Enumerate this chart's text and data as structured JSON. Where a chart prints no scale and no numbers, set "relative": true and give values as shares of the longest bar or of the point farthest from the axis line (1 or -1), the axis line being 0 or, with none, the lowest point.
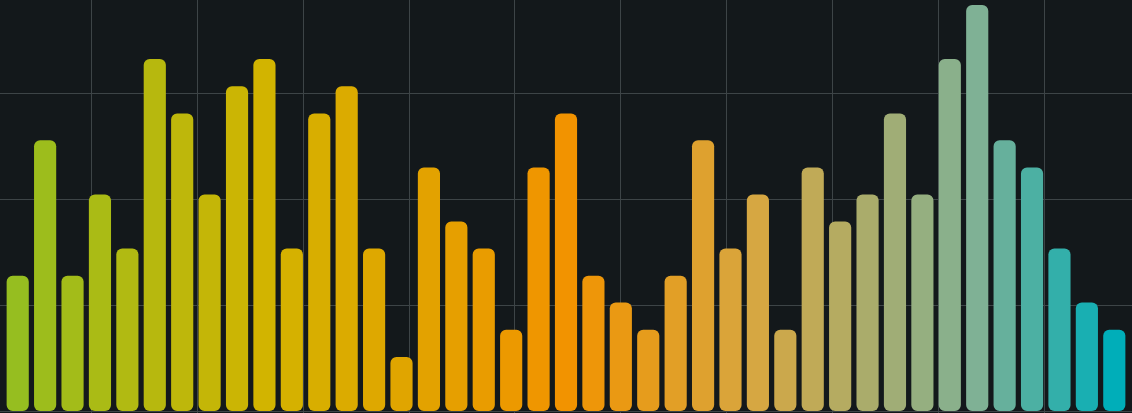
{
  "chart_data": {
    "type": "bar",
    "relative": true,
    "grid": true,
    "legend": false,
    "categories": [
      null,
      null,
      null,
      null,
      null,
      null,
      null,
      null,
      null,
      null,
      null,
      null,
      null,
      null,
      null,
      null,
      null,
      null,
      null,
      null,
      null,
      null,
      null,
      null,
      null,
      null,
      null,
      null,
      null,
      null,
      null,
      null,
      null,
      null,
      null,
      null,
      null,
      null,
      null,
      null,
      null
    ],
    "values": [
      0.333,
      0.667,
      0.333,
      0.533,
      0.4,
      0.867,
      0.733,
      0.533,
      0.8,
      0.867,
      0.4,
      0.733,
      0.8,
      0.4,
      0.133,
      0.6,
      0.467,
      0.4,
      0.2,
      0.6,
      0.733,
      0.333,
      0.267,
      0.2,
      0.333,
      0.667,
      0.4,
      0.533,
      0.2,
      0.6,
      0.467,
      0.533,
      0.733,
      0.533,
      0.867,
      1,
      0.667,
      0.6,
      0.4,
      0.267,
      0.2
    ],
    "colors": [
      "#96be20",
      "#9dbd1c",
      "#a3bc19",
      "#aabb15",
      "#b1ba12",
      "#b7b80e",
      "#beb70b",
      "#c4b607",
      "#cbb504",
      "#d2b400",
      "#d5b100",
      "#d8ae00",
      "#dbab00",
      "#dea800",
      "#e0a500",
      "#e3a200",
      "#e69f00",
      "#e99c00",
      "#ec9900",
      "#ef9600",
      "#f29300",
      "#ee9609",
      "#ea9913",
      "#e69c1c",
      "#e29f26",
      "#dea12f",
      "#daa439",
      "#d6a742",
      "#cba84c",
      "#c0aa57",
      "#b5ab61",
      "#aaac6b",
      "#a0ad76",
      "#95af80",
      "#8ab08b",
      "#7fb195",
      "#66b09c",
      "#4cb0a3",
      "#33afaa",
      "#19afb2",
      "#00aeb9"
    ]
  }
}
